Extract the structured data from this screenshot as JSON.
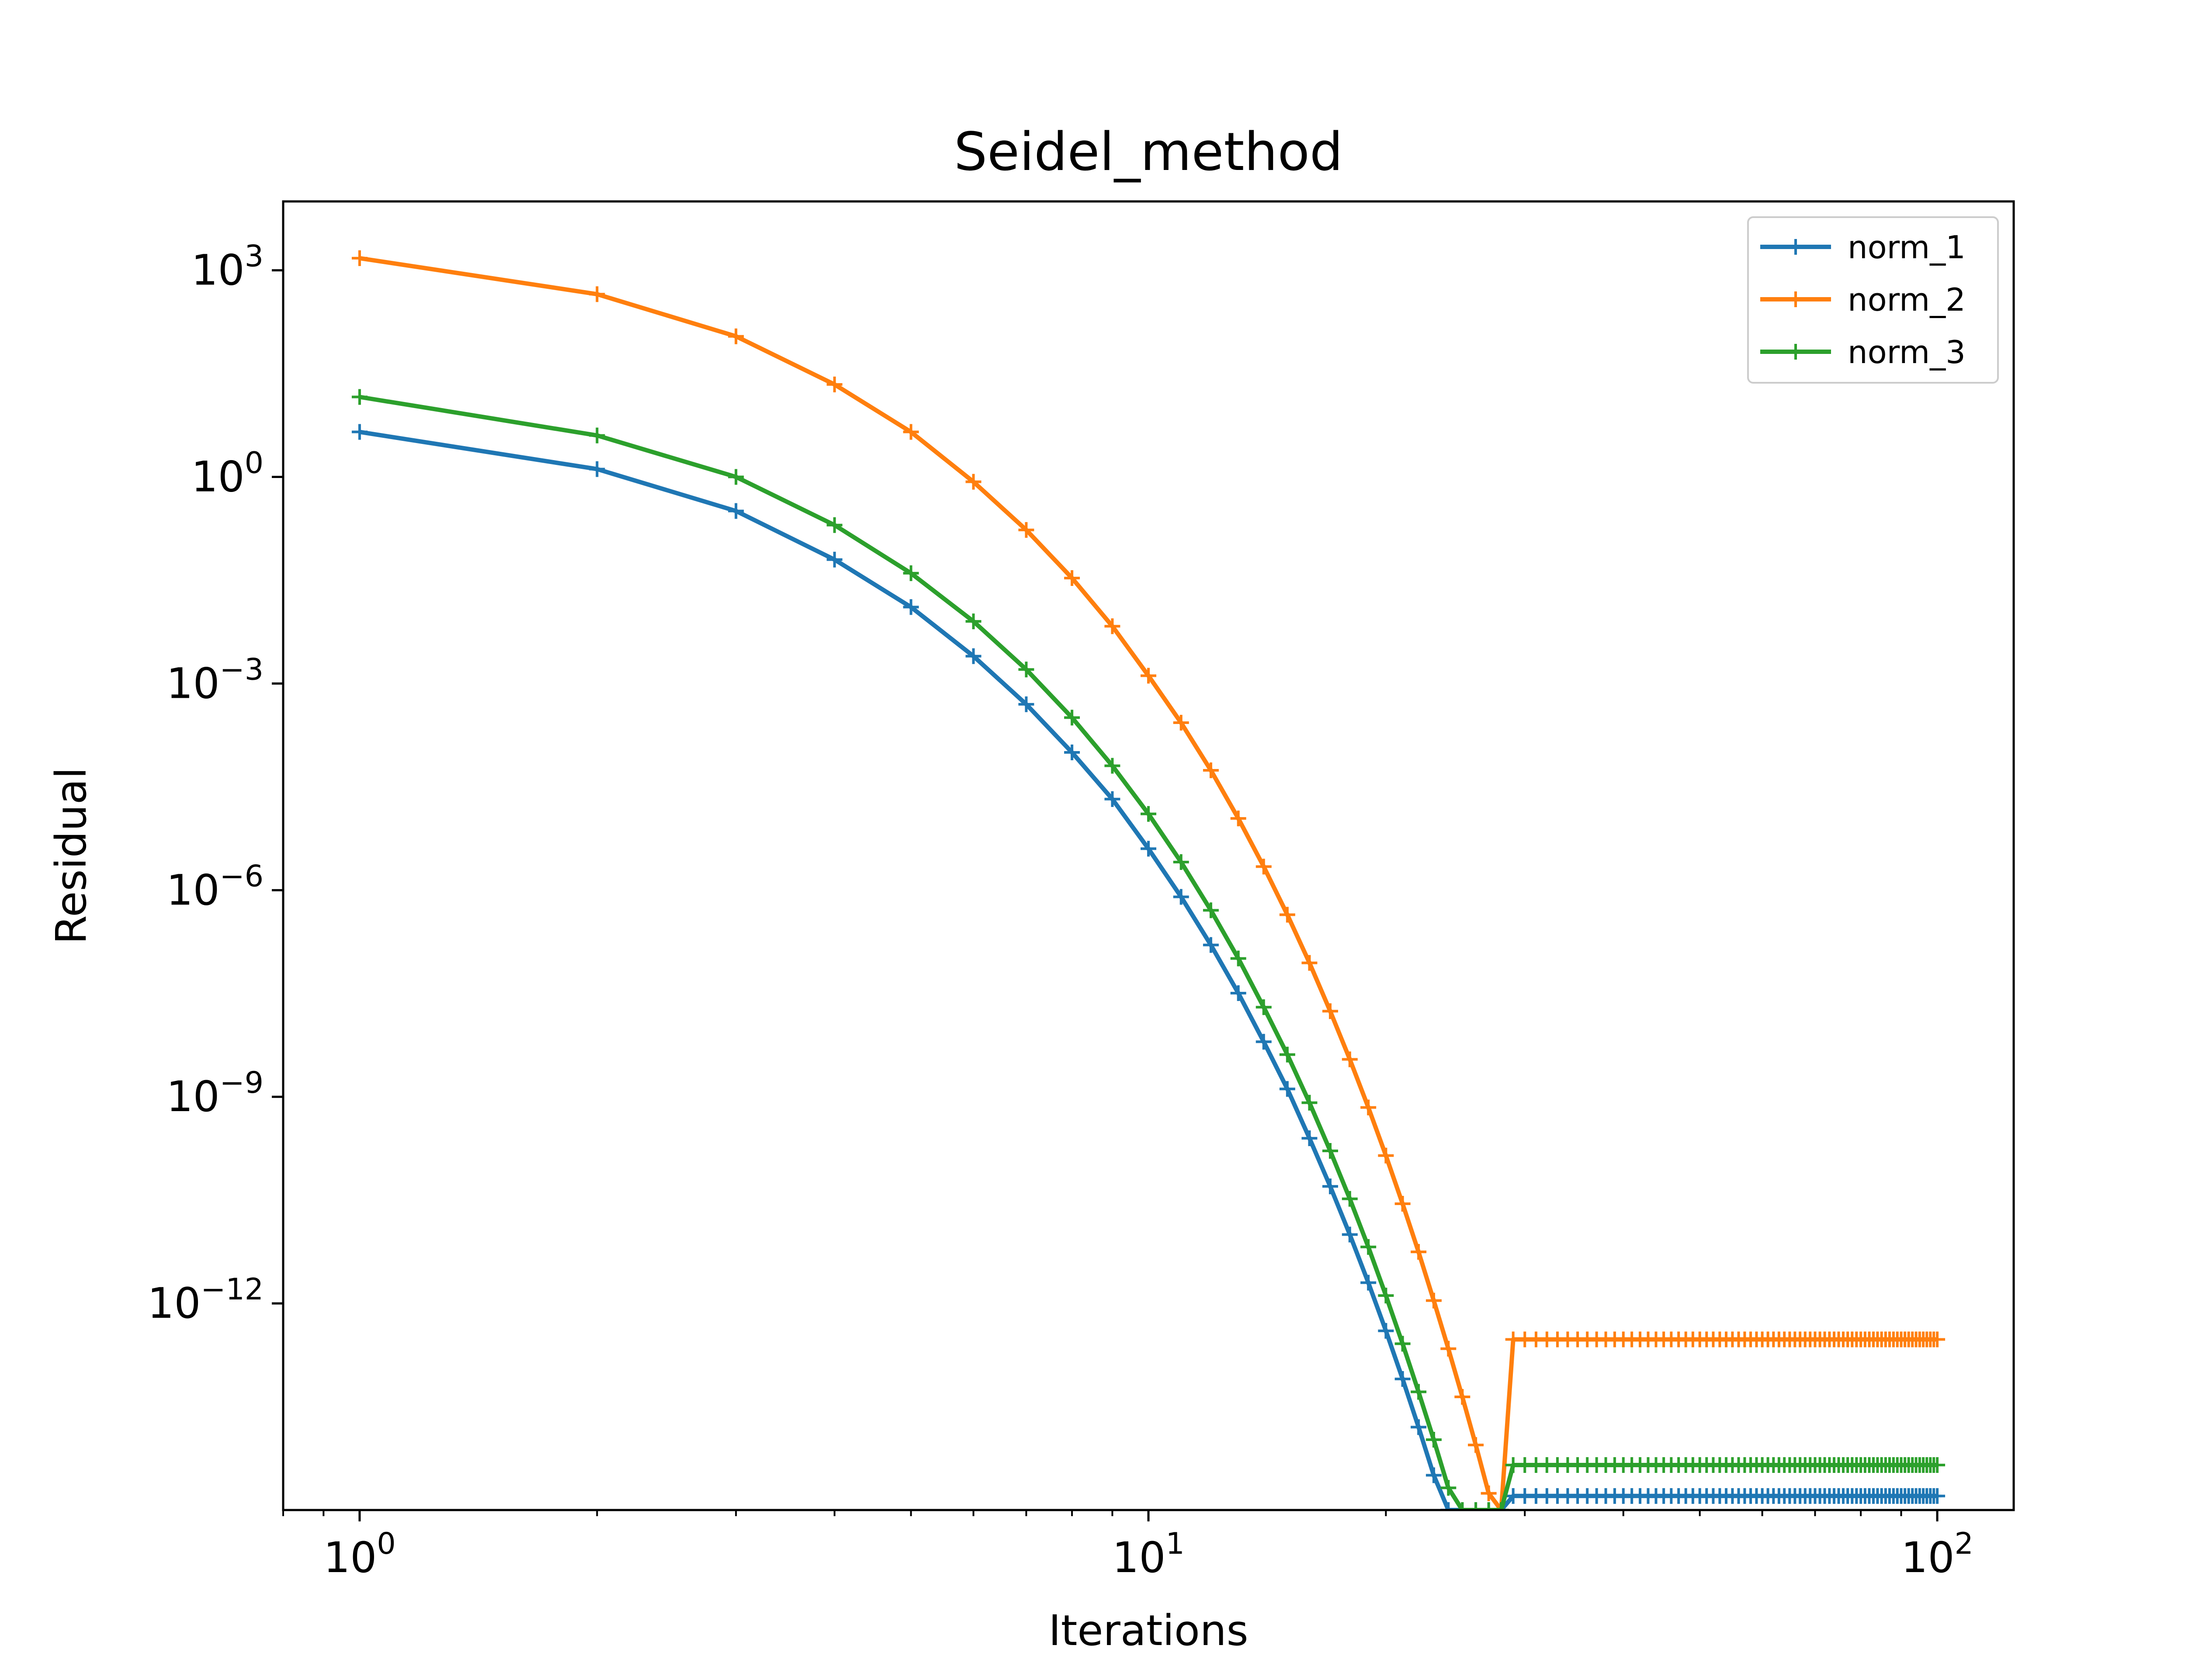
{
  "chart_data": {
    "type": "line",
    "title": "Seidel_method",
    "xlabel": "Iterations",
    "ylabel": "Residual",
    "xscale": "log",
    "yscale": "log",
    "xlim": [
      0.8,
      125
    ],
    "ylim": [
      1e-15,
      10000
    ],
    "x_ticks": [
      {
        "value": 1,
        "base": "10",
        "exp": "0"
      },
      {
        "value": 10,
        "base": "10",
        "exp": "1"
      },
      {
        "value": 100,
        "base": "10",
        "exp": "2"
      }
    ],
    "y_ticks": [
      {
        "value": 1000,
        "base": "10",
        "exp": "3"
      },
      {
        "value": 1,
        "base": "10",
        "exp": "0"
      },
      {
        "value": 0.001,
        "base": "10",
        "exp": "−3"
      },
      {
        "value": 1e-06,
        "base": "10",
        "exp": "−6"
      },
      {
        "value": 1e-09,
        "base": "10",
        "exp": "−9"
      },
      {
        "value": 1e-12,
        "base": "10",
        "exp": "−12"
      }
    ],
    "grid": false,
    "legend": "top-right",
    "marker": "+",
    "x_range": [
      1,
      100
    ],
    "series": [
      {
        "name": "norm_1",
        "color": "#1f77b4",
        "anchors": [
          [
            1,
            4.5
          ],
          [
            2,
            1.3
          ],
          [
            3,
            0.32
          ],
          [
            4,
            0.063
          ],
          [
            5,
            0.0129
          ],
          [
            6,
            0.0025
          ],
          [
            7,
            0.0005
          ],
          [
            8,
            0.0001
          ],
          [
            9,
            2.1e-05
          ],
          [
            10,
            4e-06
          ],
          [
            11,
            8e-07
          ],
          [
            12,
            1.6e-07
          ],
          [
            13,
            3.2e-08
          ],
          [
            14,
            6.3e-09
          ],
          [
            15,
            1.3e-09
          ],
          [
            16,
            2.5e-10
          ],
          [
            17,
            5e-11
          ],
          [
            18,
            1e-11
          ],
          [
            19,
            2e-12
          ],
          [
            20,
            4e-13
          ],
          [
            21,
            8e-14
          ],
          [
            22,
            1.6e-14
          ],
          [
            23,
            3.2e-15
          ],
          [
            24,
            6.3e-16
          ],
          [
            25,
            1.3e-16
          ],
          [
            26,
            2.5e-17
          ],
          [
            27,
            5e-18
          ],
          [
            28,
            1e-18
          ],
          [
            29,
            1.6e-15
          ],
          [
            100,
            1.6e-15
          ]
        ],
        "values_note_hidden": ""
      },
      {
        "name": "norm_2",
        "color": "#ff7f0e",
        "anchors": [
          [
            1,
            1500
          ],
          [
            2,
            450
          ],
          [
            3,
            110
          ],
          [
            4,
            22
          ],
          [
            5,
            4.5
          ],
          [
            6,
            0.85
          ],
          [
            7,
            0.17
          ],
          [
            8,
            0.034
          ],
          [
            9,
            0.0068
          ],
          [
            10,
            0.0013
          ],
          [
            11,
            0.00027
          ],
          [
            12,
            5.5e-05
          ],
          [
            13,
            1.1e-05
          ],
          [
            14,
            2.2e-06
          ],
          [
            15,
            4.4e-07
          ],
          [
            16,
            8.8e-08
          ],
          [
            17,
            1.75e-08
          ],
          [
            18,
            3.5e-09
          ],
          [
            19,
            7e-10
          ],
          [
            20,
            1.4e-10
          ],
          [
            21,
            2.8e-11
          ],
          [
            22,
            5.6e-12
          ],
          [
            23,
            1.1e-12
          ],
          [
            24,
            2.2e-13
          ],
          [
            25,
            4.4e-14
          ],
          [
            26,
            8.8e-15
          ],
          [
            27,
            1.75e-15
          ],
          [
            28,
            3.5e-16
          ],
          [
            29,
            3e-13
          ],
          [
            100,
            3e-13
          ]
        ]
      },
      {
        "name": "norm_3",
        "color": "#2ca02c",
        "anchors": [
          [
            1,
            14.5
          ],
          [
            2,
            4
          ],
          [
            3,
            1
          ],
          [
            4,
            0.2
          ],
          [
            5,
            0.04
          ],
          [
            6,
            0.008
          ],
          [
            7,
            0.0016
          ],
          [
            8,
            0.00032
          ],
          [
            9,
            6.4e-05
          ],
          [
            10,
            1.28e-05
          ],
          [
            11,
            2.56e-06
          ],
          [
            12,
            5.1e-07
          ],
          [
            13,
            1.02e-07
          ],
          [
            14,
            2e-08
          ],
          [
            15,
            4.1e-09
          ],
          [
            16,
            8.2e-10
          ],
          [
            17,
            1.64e-10
          ],
          [
            18,
            3.3e-11
          ],
          [
            19,
            6.6e-12
          ],
          [
            20,
            1.3e-12
          ],
          [
            21,
            2.6e-13
          ],
          [
            22,
            5.2e-14
          ],
          [
            23,
            1.05e-14
          ],
          [
            24,
            2.1e-15
          ],
          [
            25,
            4.2e-16
          ],
          [
            26,
            8.4e-17
          ],
          [
            27,
            1.7e-17
          ],
          [
            28,
            3.4e-18
          ],
          [
            29,
            4.5e-15
          ],
          [
            100,
            4.5e-15
          ]
        ]
      }
    ]
  }
}
